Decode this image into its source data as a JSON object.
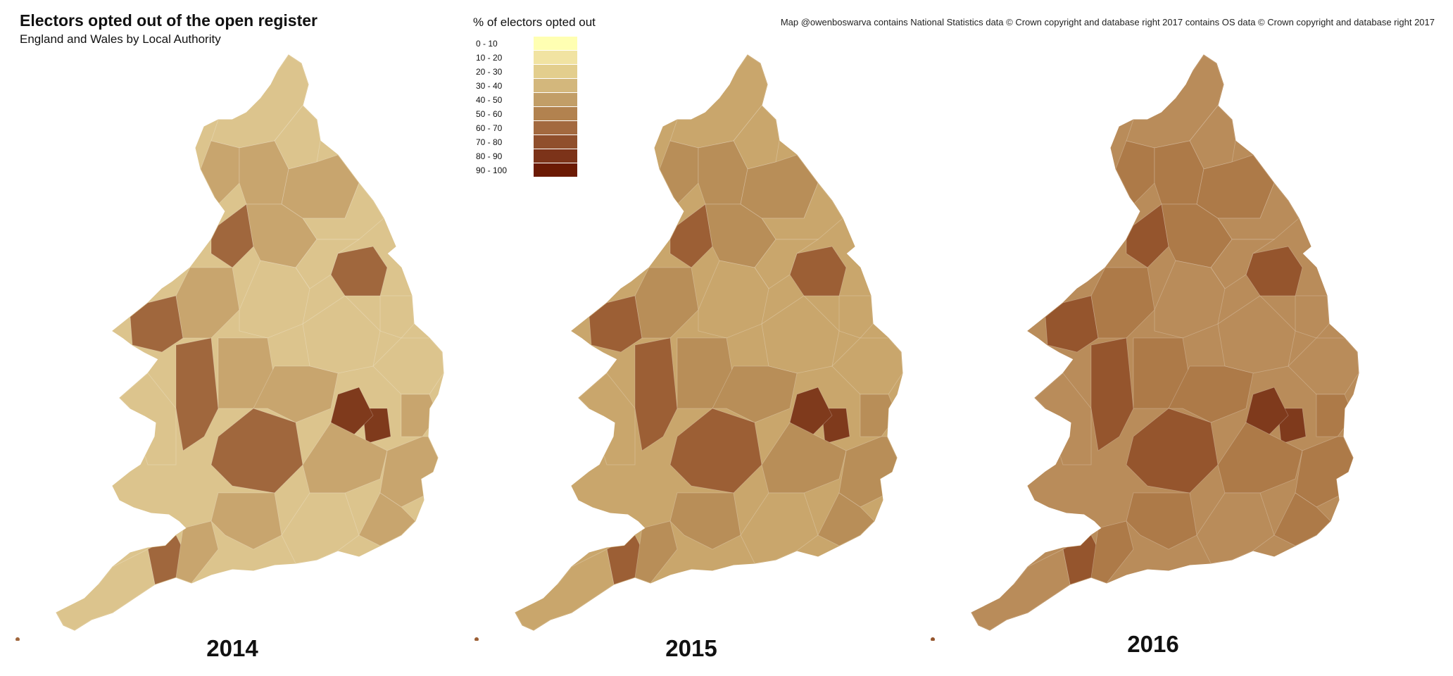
{
  "title": "Electors opted out of the open register",
  "subtitle": "England and Wales by Local Authority",
  "credit": "Map @owenboswarva contains National Statistics data © Crown copyright and database right 2017 contains OS data © Crown copyright and database right 2017",
  "legend": {
    "title": "% of electors opted out",
    "items": [
      {
        "label": "0 - 10",
        "color": "#ffffb2"
      },
      {
        "label": "10 - 20",
        "color": "#f1e3a2"
      },
      {
        "label": "20 - 30",
        "color": "#e3ce8d"
      },
      {
        "label": "30 - 40",
        "color": "#d3b77c"
      },
      {
        "label": "40 - 50",
        "color": "#c29e67"
      },
      {
        "label": "50 - 60",
        "color": "#b2824f"
      },
      {
        "label": "60 - 70",
        "color": "#a3693f"
      },
      {
        "label": "70 - 80",
        "color": "#904f2c"
      },
      {
        "label": "80 - 90",
        "color": "#7c3319"
      },
      {
        "label": "90 - 100",
        "color": "#6b1a04"
      }
    ]
  },
  "maps": [
    {
      "year": "2014",
      "base_color": "#dcc48d",
      "mid_color": "#c8a56e",
      "dark_color": "#a0673d",
      "darkest_color": "#7f3a1c"
    },
    {
      "year": "2015",
      "base_color": "#c9a66c",
      "mid_color": "#b88e58",
      "dark_color": "#9c5f35",
      "darkest_color": "#7f3a1c"
    },
    {
      "year": "2016",
      "base_color": "#b98c5a",
      "mid_color": "#ad7a48",
      "dark_color": "#95552d",
      "darkest_color": "#7f3a1c"
    }
  ]
}
